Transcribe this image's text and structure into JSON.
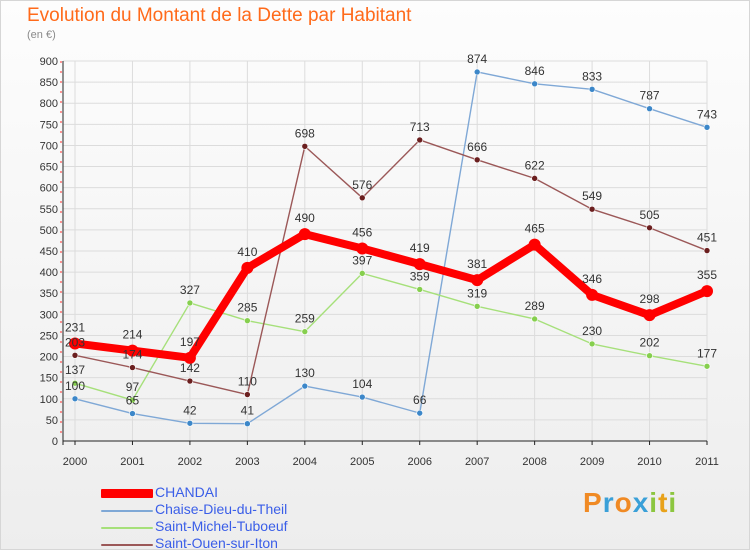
{
  "title": "Evolution du Montant de la Dette par Habitant",
  "subtitle": "(en €)",
  "logo": {
    "text": "Proxiti",
    "letters": [
      {
        "ch": "P",
        "color": "#f08a24"
      },
      {
        "ch": "r",
        "color": "#3aa0d8"
      },
      {
        "ch": "o",
        "color": "#f08a24"
      },
      {
        "ch": "x",
        "color": "#3aa0d8"
      },
      {
        "ch": "i",
        "color": "#8cc63f"
      },
      {
        "ch": "t",
        "color": "#e8a21a"
      },
      {
        "ch": "i",
        "color": "#8cc63f"
      }
    ]
  },
  "chart_data": {
    "type": "line",
    "title": "Evolution du Montant de la Dette par Habitant",
    "subtitle": "(en €)",
    "xlabel": "",
    "ylabel": "",
    "ylim": [
      0,
      900
    ],
    "yticks": [
      0,
      50,
      100,
      150,
      200,
      250,
      300,
      350,
      400,
      450,
      500,
      550,
      600,
      650,
      700,
      750,
      800,
      850,
      900
    ],
    "grid": true,
    "legend_position": "bottom-left",
    "categories": [
      "2000",
      "2001",
      "2002",
      "2003",
      "2004",
      "2005",
      "2006",
      "2007",
      "2008",
      "2009",
      "2010",
      "2011"
    ],
    "series": [
      {
        "name": "CHANDAI",
        "color": "#ff0000",
        "marker_color": "#ff0000",
        "emphasis": true,
        "values": [
          231,
          214,
          197,
          410,
          490,
          456,
          419,
          381,
          465,
          346,
          298,
          355
        ]
      },
      {
        "name": "Chaise-Dieu-du-Theil",
        "color": "#7fa8d6",
        "marker_color": "#3c87c9",
        "emphasis": false,
        "values": [
          100,
          65,
          42,
          41,
          130,
          104,
          66,
          874,
          846,
          833,
          787,
          743
        ]
      },
      {
        "name": "Saint-Michel-Tuboeuf",
        "color": "#a6e07a",
        "marker_color": "#86cf4e",
        "emphasis": false,
        "values": [
          137,
          97,
          327,
          285,
          259,
          397,
          359,
          319,
          289,
          230,
          202,
          177
        ]
      },
      {
        "name": "Saint-Ouen-sur-Iton",
        "color": "#9b5858",
        "marker_color": "#6b1f1f",
        "emphasis": false,
        "values": [
          203,
          174,
          142,
          110,
          698,
          576,
          713,
          666,
          622,
          549,
          505,
          451
        ]
      }
    ]
  }
}
